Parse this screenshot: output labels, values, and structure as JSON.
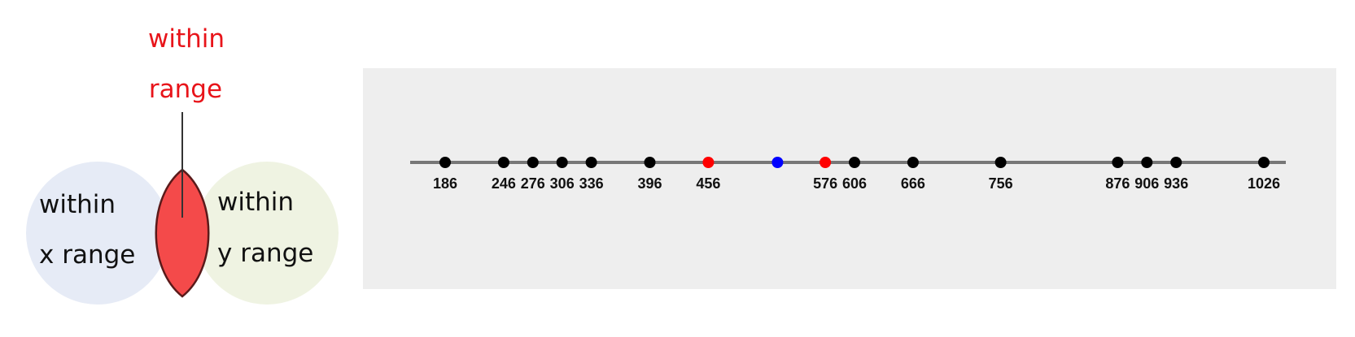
{
  "venn": {
    "circle_x_label_line1": "within",
    "circle_x_label_line2": "x range",
    "circle_y_label_line1": "within",
    "circle_y_label_line2": "y range",
    "intersection_label_line1": "within",
    "intersection_label_line2": "range",
    "colors": {
      "circle_x_fill": "#e6ebf6",
      "circle_y_fill": "#eff3e2",
      "intersection_fill": "#f44a4a",
      "intersection_label": "#e8141a"
    }
  },
  "number_line": {
    "axis_min": 150,
    "axis_max": 1040,
    "points": [
      {
        "value": 186,
        "label": "186",
        "color": "#000000"
      },
      {
        "value": 246,
        "label": "246",
        "color": "#000000"
      },
      {
        "value": 276,
        "label": "276",
        "color": "#000000"
      },
      {
        "value": 306,
        "label": "306",
        "color": "#000000"
      },
      {
        "value": 336,
        "label": "336",
        "color": "#000000"
      },
      {
        "value": 396,
        "label": "396",
        "color": "#000000"
      },
      {
        "value": 456,
        "label": "456",
        "color": "#ff0000"
      },
      {
        "value": 527,
        "label": "",
        "color": "#0000ff"
      },
      {
        "value": 576,
        "label": "576",
        "color": "#ff0000"
      },
      {
        "value": 606,
        "label": "606",
        "color": "#000000"
      },
      {
        "value": 666,
        "label": "666",
        "color": "#000000"
      },
      {
        "value": 756,
        "label": "756",
        "color": "#000000"
      },
      {
        "value": 876,
        "label": "876",
        "color": "#000000"
      },
      {
        "value": 906,
        "label": "906",
        "color": "#000000"
      },
      {
        "value": 936,
        "label": "936",
        "color": "#000000"
      },
      {
        "value": 1026,
        "label": "1026",
        "color": "#000000"
      }
    ]
  }
}
